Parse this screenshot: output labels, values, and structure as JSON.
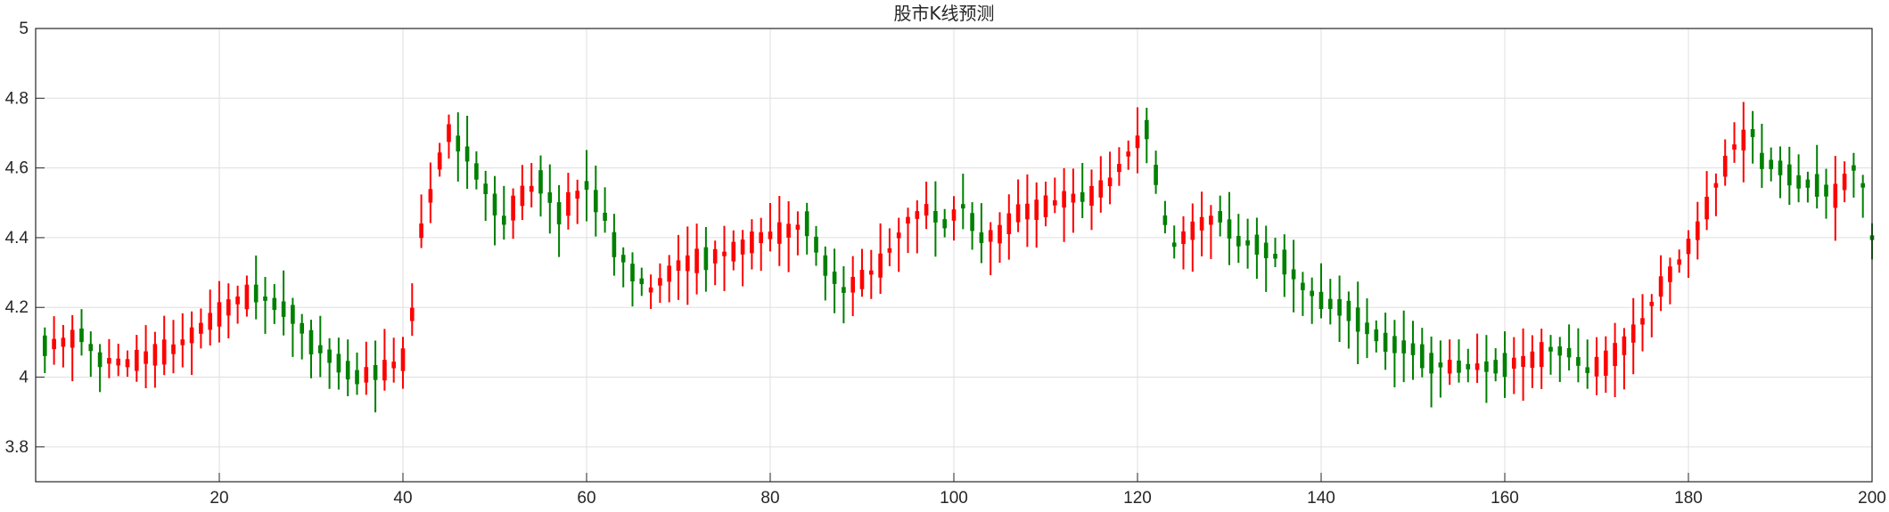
{
  "chart_data": {
    "type": "candlestick",
    "title": "股市K线预测",
    "xlabel": "",
    "ylabel": "",
    "xlim": [
      0,
      200
    ],
    "ylim": [
      3.7,
      5.0
    ],
    "xticks": [
      20,
      40,
      60,
      80,
      100,
      120,
      140,
      160,
      180,
      200
    ],
    "yticks": [
      3.8,
      4.0,
      4.2,
      4.4,
      4.6,
      4.8,
      5.0
    ],
    "xtick_labels": [
      "20",
      "40",
      "60",
      "80",
      "100",
      "120",
      "140",
      "160",
      "180",
      "200"
    ],
    "ytick_labels": [
      "3.8",
      "4",
      "4.2",
      "4.4",
      "4.6",
      "4.8",
      "5"
    ],
    "grid": true,
    "colors": {
      "up": "#ff0000",
      "down": "#008000"
    },
    "keypoints": [
      [
        1,
        4.09
      ],
      [
        3,
        4.1
      ],
      [
        5,
        4.12
      ],
      [
        7,
        4.05
      ],
      [
        10,
        4.04
      ],
      [
        15,
        4.08
      ],
      [
        17,
        4.12
      ],
      [
        20,
        4.18
      ],
      [
        22,
        4.22
      ],
      [
        24,
        4.24
      ],
      [
        28,
        4.18
      ],
      [
        30,
        4.1
      ],
      [
        33,
        4.04
      ],
      [
        35,
        4.0
      ],
      [
        38,
        4.02
      ],
      [
        40,
        4.05
      ],
      [
        41,
        4.18
      ],
      [
        42,
        4.42
      ],
      [
        44,
        4.62
      ],
      [
        45,
        4.7
      ],
      [
        47,
        4.64
      ],
      [
        49,
        4.54
      ],
      [
        51,
        4.45
      ],
      [
        53,
        4.52
      ],
      [
        55,
        4.56
      ],
      [
        57,
        4.47
      ],
      [
        60,
        4.55
      ],
      [
        62,
        4.46
      ],
      [
        63,
        4.38
      ],
      [
        65,
        4.3
      ],
      [
        67,
        4.25
      ],
      [
        70,
        4.32
      ],
      [
        73,
        4.34
      ],
      [
        76,
        4.36
      ],
      [
        79,
        4.4
      ],
      [
        82,
        4.42
      ],
      [
        84,
        4.44
      ],
      [
        86,
        4.32
      ],
      [
        88,
        4.25
      ],
      [
        90,
        4.28
      ],
      [
        92,
        4.32
      ],
      [
        95,
        4.45
      ],
      [
        97,
        4.48
      ],
      [
        99,
        4.44
      ],
      [
        101,
        4.49
      ],
      [
        103,
        4.4
      ],
      [
        105,
        4.41
      ],
      [
        107,
        4.47
      ],
      [
        109,
        4.48
      ],
      [
        112,
        4.51
      ],
      [
        115,
        4.52
      ],
      [
        117,
        4.56
      ],
      [
        119,
        4.64
      ],
      [
        121,
        4.71
      ],
      [
        122,
        4.58
      ],
      [
        123,
        4.45
      ],
      [
        124,
        4.38
      ],
      [
        127,
        4.44
      ],
      [
        129,
        4.46
      ],
      [
        131,
        4.39
      ],
      [
        133,
        4.38
      ],
      [
        136,
        4.33
      ],
      [
        138,
        4.26
      ],
      [
        140,
        4.22
      ],
      [
        143,
        4.19
      ],
      [
        145,
        4.14
      ],
      [
        147,
        4.1
      ],
      [
        150,
        4.08
      ],
      [
        152,
        4.04
      ],
      [
        154,
        4.03
      ],
      [
        157,
        4.03
      ],
      [
        159,
        4.03
      ],
      [
        161,
        4.04
      ],
      [
        163,
        4.05
      ],
      [
        165,
        4.08
      ],
      [
        167,
        4.07
      ],
      [
        169,
        4.02
      ],
      [
        171,
        4.04
      ],
      [
        173,
        4.09
      ],
      [
        175,
        4.16
      ],
      [
        177,
        4.26
      ],
      [
        179,
        4.33
      ],
      [
        181,
        4.42
      ],
      [
        183,
        4.55
      ],
      [
        185,
        4.66
      ],
      [
        187,
        4.7
      ],
      [
        188,
        4.62
      ],
      [
        190,
        4.6
      ],
      [
        192,
        4.56
      ],
      [
        194,
        4.55
      ],
      [
        196,
        4.52
      ],
      [
        198,
        4.6
      ],
      [
        199,
        4.55
      ],
      [
        200,
        4.4
      ]
    ]
  }
}
